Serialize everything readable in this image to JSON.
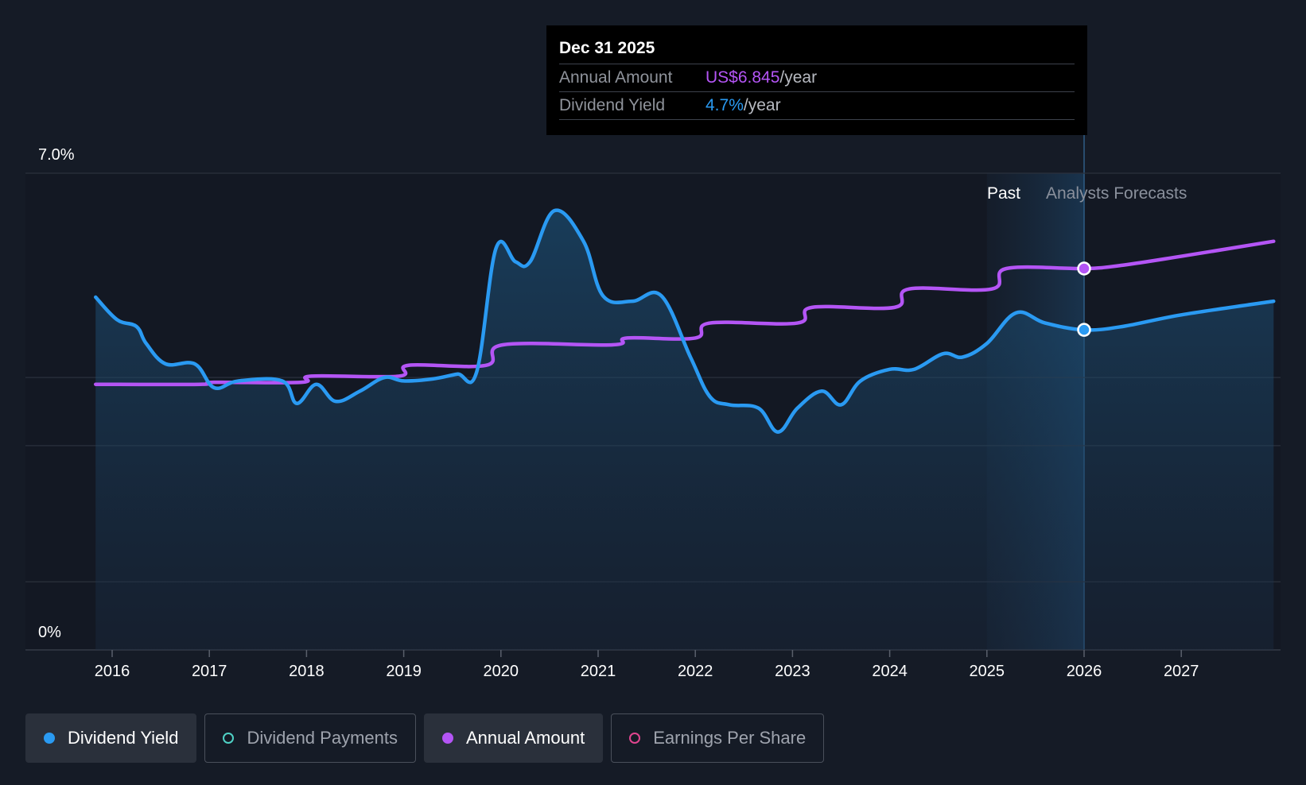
{
  "tooltip": {
    "date": "Dec 31 2025",
    "rows": [
      {
        "label": "Annual Amount",
        "value": "US$6.845",
        "unit": "/year"
      },
      {
        "label": "Dividend Yield",
        "value": "4.7%",
        "unit": "/year"
      }
    ]
  },
  "regions": {
    "past": "Past",
    "forecast": "Analysts Forecasts"
  },
  "legend": [
    {
      "label": "Dividend Yield",
      "color": "#2a9af2",
      "active": true,
      "filled": true
    },
    {
      "label": "Dividend Payments",
      "color": "#4fd1c5",
      "active": false,
      "filled": false
    },
    {
      "label": "Annual Amount",
      "color": "#b455f5",
      "active": true,
      "filled": true
    },
    {
      "label": "Earnings Per Share",
      "color": "#e0458f",
      "active": false,
      "filled": false
    }
  ],
  "chart_data": {
    "type": "line",
    "ylim": [
      0,
      7.0
    ],
    "ytick_labels": [
      "7.0%",
      "0%"
    ],
    "xlim": [
      2015.3,
      2027.95
    ],
    "xticks": [
      2016,
      2017,
      2018,
      2019,
      2020,
      2021,
      2022,
      2023,
      2024,
      2025,
      2026,
      2027
    ],
    "grid": true,
    "legend_position": "bottom",
    "past_region": [
      2025.0,
      2026.0
    ],
    "highlight_x": 2026.0,
    "series": [
      {
        "name": "Dividend Yield",
        "color": "#2a9af2",
        "area": true,
        "points": [
          [
            2015.83,
            5.18
          ],
          [
            2016.05,
            4.85
          ],
          [
            2016.25,
            4.75
          ],
          [
            2016.35,
            4.5
          ],
          [
            2016.55,
            4.2
          ],
          [
            2016.85,
            4.2
          ],
          [
            2017.05,
            3.85
          ],
          [
            2017.3,
            3.95
          ],
          [
            2017.75,
            3.95
          ],
          [
            2017.9,
            3.62
          ],
          [
            2018.1,
            3.9
          ],
          [
            2018.3,
            3.65
          ],
          [
            2018.55,
            3.8
          ],
          [
            2018.8,
            4.0
          ],
          [
            2019.0,
            3.95
          ],
          [
            2019.3,
            3.98
          ],
          [
            2019.55,
            4.05
          ],
          [
            2019.75,
            4.08
          ],
          [
            2019.95,
            5.9
          ],
          [
            2020.15,
            5.7
          ],
          [
            2020.3,
            5.7
          ],
          [
            2020.55,
            6.45
          ],
          [
            2020.85,
            6.0
          ],
          [
            2021.05,
            5.2
          ],
          [
            2021.35,
            5.12
          ],
          [
            2021.65,
            5.2
          ],
          [
            2021.95,
            4.3
          ],
          [
            2022.15,
            3.72
          ],
          [
            2022.35,
            3.6
          ],
          [
            2022.65,
            3.55
          ],
          [
            2022.85,
            3.2
          ],
          [
            2023.05,
            3.55
          ],
          [
            2023.3,
            3.8
          ],
          [
            2023.5,
            3.6
          ],
          [
            2023.7,
            3.95
          ],
          [
            2024.0,
            4.12
          ],
          [
            2024.25,
            4.12
          ],
          [
            2024.55,
            4.35
          ],
          [
            2024.75,
            4.3
          ],
          [
            2025.0,
            4.5
          ],
          [
            2025.3,
            4.95
          ],
          [
            2025.6,
            4.8
          ],
          [
            2026.0,
            4.7
          ],
          [
            2026.4,
            4.75
          ],
          [
            2027.0,
            4.92
          ],
          [
            2027.95,
            5.12
          ]
        ]
      },
      {
        "name": "Annual Amount",
        "color": "#b455f5",
        "area": false,
        "points": [
          [
            2015.83,
            3.9
          ],
          [
            2016.9,
            3.9
          ],
          [
            2017.05,
            3.93
          ],
          [
            2017.95,
            3.93
          ],
          [
            2018.05,
            4.02
          ],
          [
            2018.95,
            4.02
          ],
          [
            2019.05,
            4.18
          ],
          [
            2019.85,
            4.18
          ],
          [
            2020.02,
            4.48
          ],
          [
            2021.15,
            4.48
          ],
          [
            2021.3,
            4.58
          ],
          [
            2022.0,
            4.58
          ],
          [
            2022.15,
            4.8
          ],
          [
            2023.05,
            4.8
          ],
          [
            2023.2,
            5.03
          ],
          [
            2024.05,
            5.03
          ],
          [
            2024.2,
            5.3
          ],
          [
            2025.05,
            5.3
          ],
          [
            2025.2,
            5.6
          ],
          [
            2026.0,
            5.6
          ],
          [
            2026.4,
            5.65
          ],
          [
            2027.0,
            5.78
          ],
          [
            2027.95,
            6.0
          ]
        ]
      }
    ]
  }
}
